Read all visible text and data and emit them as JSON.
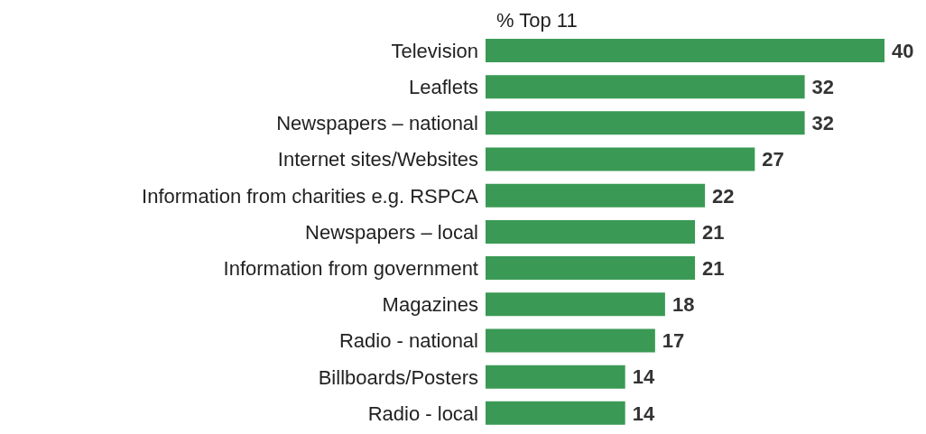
{
  "chart_data": {
    "type": "bar",
    "orientation": "horizontal",
    "title": "% Top 11",
    "categories": [
      "Television",
      "Leaflets",
      "Newspapers – national",
      "Internet sites/Websites",
      "Information from charities e.g. RSPCA",
      "Newspapers – local",
      "Information from government",
      "Magazines",
      "Radio - national",
      "Billboards/Posters",
      "Radio - local"
    ],
    "values": [
      40,
      32,
      32,
      27,
      22,
      21,
      21,
      18,
      17,
      14,
      14
    ],
    "color": "#3a9a55",
    "data_labels": true
  }
}
